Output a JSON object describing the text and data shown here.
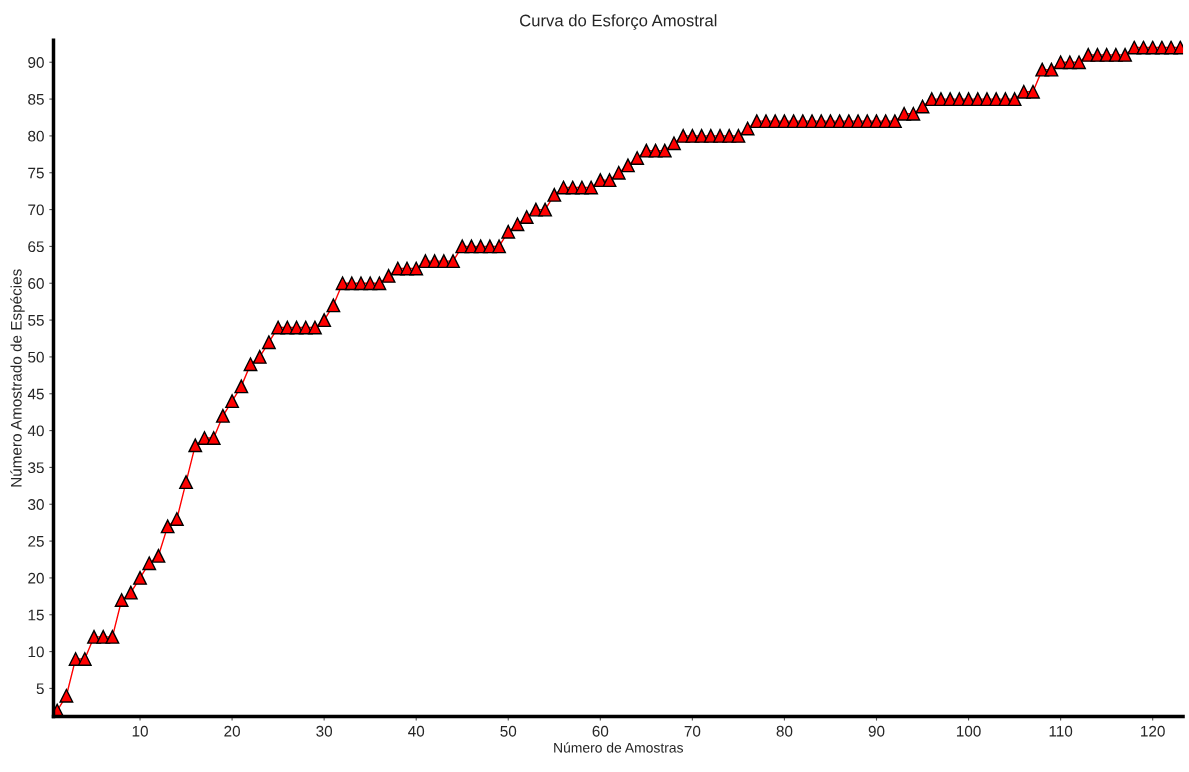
{
  "chart_data": {
    "type": "line",
    "title": "Curva do Esforço Amostral",
    "xlabel": "Número de Amostras",
    "ylabel": "Número Amostrado de Espécies",
    "x": [
      1,
      2,
      3,
      4,
      5,
      6,
      7,
      8,
      9,
      10,
      11,
      12,
      13,
      14,
      15,
      16,
      17,
      18,
      19,
      20,
      21,
      22,
      23,
      24,
      25,
      26,
      27,
      28,
      29,
      30,
      31,
      32,
      33,
      34,
      35,
      36,
      37,
      38,
      39,
      40,
      41,
      42,
      43,
      44,
      45,
      46,
      47,
      48,
      49,
      50,
      51,
      52,
      53,
      54,
      55,
      56,
      57,
      58,
      59,
      60,
      61,
      62,
      63,
      64,
      65,
      66,
      67,
      68,
      69,
      70,
      71,
      72,
      73,
      74,
      75,
      76,
      77,
      78,
      79,
      80,
      81,
      82,
      83,
      84,
      85,
      86,
      87,
      88,
      89,
      90,
      91,
      92,
      93,
      94,
      95,
      96,
      97,
      98,
      99,
      100,
      101,
      102,
      103,
      104,
      105,
      106,
      107,
      108,
      109,
      110,
      111,
      112,
      113,
      114,
      115,
      116,
      117,
      118,
      119,
      120,
      121,
      122,
      123
    ],
    "series": [
      {
        "color": "#ff0000",
        "values": [
          2,
          4,
          9,
          9,
          12,
          12,
          12,
          17,
          18,
          20,
          22,
          23,
          27,
          28,
          33,
          38,
          39,
          39,
          42,
          44,
          46,
          49,
          50,
          52,
          54,
          54,
          54,
          54,
          54,
          55,
          57,
          60,
          60,
          60,
          60,
          60,
          61,
          62,
          62,
          62,
          63,
          63,
          63,
          63,
          65,
          65,
          65,
          65,
          65,
          67,
          68,
          69,
          70,
          70,
          72,
          73,
          73,
          73,
          73,
          74,
          74,
          75,
          76,
          77,
          78,
          78,
          78,
          79,
          80,
          80,
          80,
          80,
          80,
          80,
          80,
          81,
          82,
          82,
          82,
          82,
          82,
          82,
          82,
          82,
          82,
          82,
          82,
          82,
          82,
          82,
          82,
          82,
          83,
          83,
          84,
          85,
          85,
          85,
          85,
          85,
          85,
          85,
          85,
          85,
          85,
          86,
          86,
          89,
          89,
          90,
          90,
          90,
          91,
          91,
          91,
          91,
          91,
          92,
          92,
          92,
          92,
          92,
          92
        ]
      }
    ],
    "xlim": [
      0.6,
      123.3
    ],
    "ylim": [
      1.2,
      93
    ],
    "xticks": [
      10,
      20,
      30,
      40,
      50,
      60,
      70,
      80,
      90,
      100,
      110,
      120
    ],
    "yticks": [
      5,
      10,
      15,
      20,
      25,
      30,
      35,
      40,
      45,
      50,
      55,
      60,
      65,
      70,
      75,
      80,
      85,
      90
    ],
    "marker": "triangle",
    "line_style": "solid",
    "grid": false
  }
}
